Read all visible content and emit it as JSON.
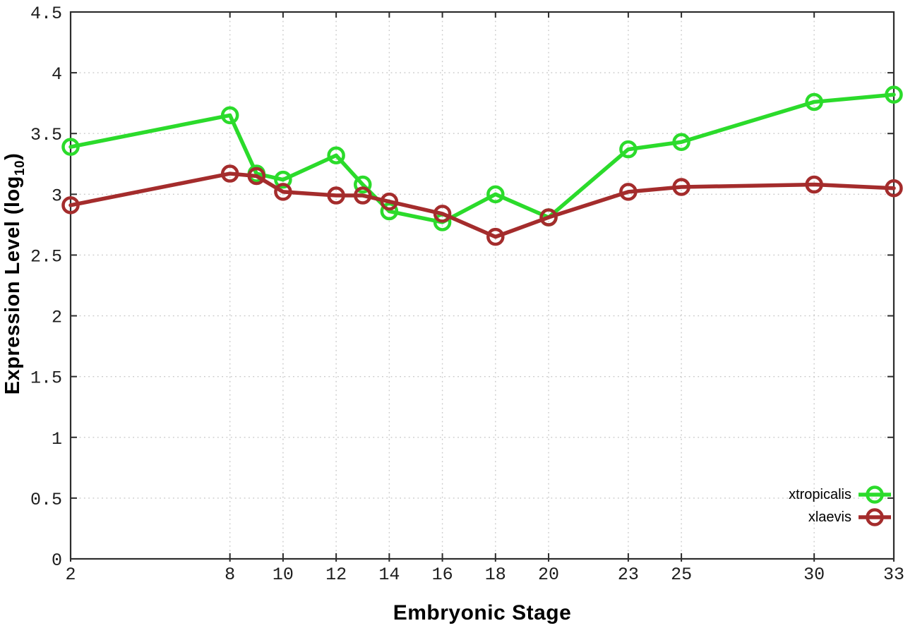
{
  "chart_data": {
    "type": "line",
    "title": "",
    "xlabel": "Embryonic Stage",
    "ylabel_parts": [
      "Expression Level (log",
      "10",
      ")"
    ],
    "xlim": [
      2,
      33
    ],
    "ylim": [
      0,
      4.5
    ],
    "grid": true,
    "legend_position": "bottom-right",
    "xtick_values": [
      2,
      8,
      10,
      12,
      14,
      16,
      18,
      20,
      23,
      25,
      30,
      33
    ],
    "xtick_labels": [
      "2",
      "8",
      "10",
      "12",
      "14",
      "16",
      "18",
      "20",
      "23",
      "25",
      "30",
      "33"
    ],
    "ytick_values": [
      0,
      0.5,
      1,
      1.5,
      2,
      2.5,
      3,
      3.5,
      4,
      4.5
    ],
    "ytick_labels": [
      "0",
      "0.5",
      "1",
      "1.5",
      "2",
      "2.5",
      "3",
      "3.5",
      "4",
      "4.5"
    ],
    "x": [
      2,
      8,
      9,
      10,
      12,
      13,
      14,
      16,
      18,
      20,
      23,
      25,
      30,
      33
    ],
    "series": [
      {
        "name": "xtropicalis",
        "color": "#2bdb2b",
        "values": [
          3.39,
          3.65,
          3.17,
          3.12,
          3.32,
          3.08,
          2.86,
          2.77,
          3.0,
          2.81,
          3.37,
          3.43,
          3.76,
          3.82
        ]
      },
      {
        "name": "xlaevis",
        "color": "#a42c2c",
        "values": [
          2.91,
          3.17,
          3.15,
          3.02,
          2.99,
          2.99,
          2.94,
          2.84,
          2.65,
          2.81,
          3.02,
          3.06,
          3.08,
          3.05
        ]
      }
    ],
    "styles": {
      "background": "#ffffff",
      "axis_color": "#2d2d2d",
      "grid_color": "#c9c9c9",
      "tick_label_color": "#1d1d1d"
    }
  }
}
